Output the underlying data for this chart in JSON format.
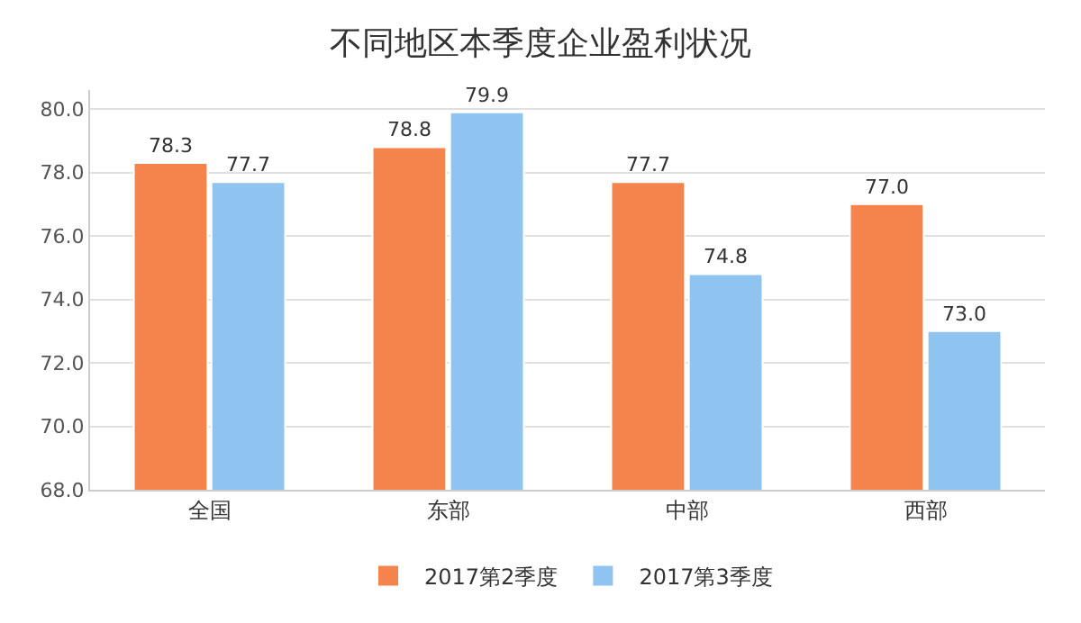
{
  "chart_data": {
    "type": "bar",
    "title": "不同地区本季度企业盈利状况",
    "categories": [
      "全国",
      "东部",
      "中部",
      "西部"
    ],
    "series": [
      {
        "name": "2017第2季度",
        "color": "#f4844c",
        "values": [
          78.3,
          78.8,
          77.7,
          77.0
        ],
        "value_labels": [
          "78.3",
          "78.8",
          "77.7",
          "77.0"
        ]
      },
      {
        "name": "2017第3季度",
        "color": "#8fc4f0",
        "values": [
          77.7,
          79.9,
          74.8,
          73.0
        ],
        "value_labels": [
          "77.7",
          "79.9",
          "74.8",
          "73.0"
        ]
      }
    ],
    "ylim": [
      68,
      80.6
    ],
    "yticks": [
      {
        "value": 68,
        "label": "68.0"
      },
      {
        "value": 70,
        "label": "70.0"
      },
      {
        "value": 72,
        "label": "72.0"
      },
      {
        "value": 74,
        "label": "74.0"
      },
      {
        "value": 76,
        "label": "76.0"
      },
      {
        "value": 78,
        "label": "78.0"
      },
      {
        "value": 80,
        "label": "80.0"
      }
    ],
    "grid": "y",
    "legend": "bottom"
  }
}
